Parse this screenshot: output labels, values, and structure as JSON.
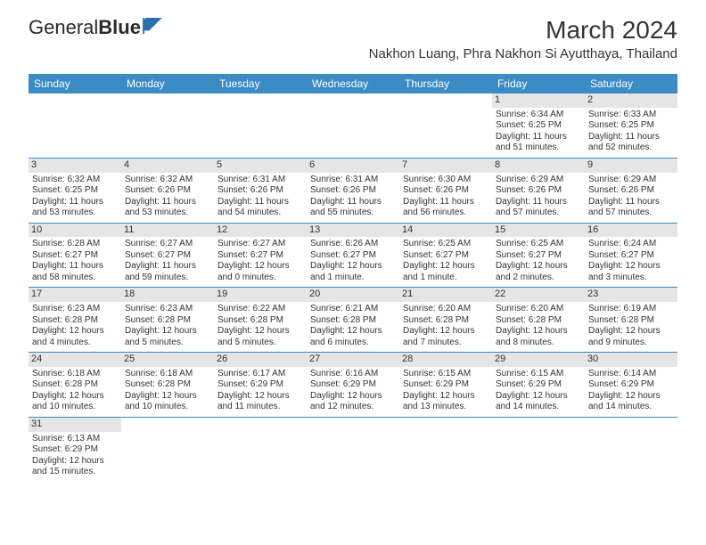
{
  "logo": {
    "text1": "General",
    "text2": "Blue"
  },
  "title": "March 2024",
  "location": "Nakhon Luang, Phra Nakhon Si Ayutthaya, Thailand",
  "colors": {
    "header_bg": "#3b8bc5",
    "header_fg": "#ffffff",
    "daynum_bg": "#e5e5e5",
    "border": "#3b8bc5",
    "logo_shape": "#2a6fb0"
  },
  "weekdays": [
    "Sunday",
    "Monday",
    "Tuesday",
    "Wednesday",
    "Thursday",
    "Friday",
    "Saturday"
  ],
  "weeks": [
    [
      null,
      null,
      null,
      null,
      null,
      {
        "d": "1",
        "sr": "Sunrise: 6:34 AM",
        "ss": "Sunset: 6:25 PM",
        "dl1": "Daylight: 11 hours",
        "dl2": "and 51 minutes."
      },
      {
        "d": "2",
        "sr": "Sunrise: 6:33 AM",
        "ss": "Sunset: 6:25 PM",
        "dl1": "Daylight: 11 hours",
        "dl2": "and 52 minutes."
      }
    ],
    [
      {
        "d": "3",
        "sr": "Sunrise: 6:32 AM",
        "ss": "Sunset: 6:25 PM",
        "dl1": "Daylight: 11 hours",
        "dl2": "and 53 minutes."
      },
      {
        "d": "4",
        "sr": "Sunrise: 6:32 AM",
        "ss": "Sunset: 6:26 PM",
        "dl1": "Daylight: 11 hours",
        "dl2": "and 53 minutes."
      },
      {
        "d": "5",
        "sr": "Sunrise: 6:31 AM",
        "ss": "Sunset: 6:26 PM",
        "dl1": "Daylight: 11 hours",
        "dl2": "and 54 minutes."
      },
      {
        "d": "6",
        "sr": "Sunrise: 6:31 AM",
        "ss": "Sunset: 6:26 PM",
        "dl1": "Daylight: 11 hours",
        "dl2": "and 55 minutes."
      },
      {
        "d": "7",
        "sr": "Sunrise: 6:30 AM",
        "ss": "Sunset: 6:26 PM",
        "dl1": "Daylight: 11 hours",
        "dl2": "and 56 minutes."
      },
      {
        "d": "8",
        "sr": "Sunrise: 6:29 AM",
        "ss": "Sunset: 6:26 PM",
        "dl1": "Daylight: 11 hours",
        "dl2": "and 57 minutes."
      },
      {
        "d": "9",
        "sr": "Sunrise: 6:29 AM",
        "ss": "Sunset: 6:26 PM",
        "dl1": "Daylight: 11 hours",
        "dl2": "and 57 minutes."
      }
    ],
    [
      {
        "d": "10",
        "sr": "Sunrise: 6:28 AM",
        "ss": "Sunset: 6:27 PM",
        "dl1": "Daylight: 11 hours",
        "dl2": "and 58 minutes."
      },
      {
        "d": "11",
        "sr": "Sunrise: 6:27 AM",
        "ss": "Sunset: 6:27 PM",
        "dl1": "Daylight: 11 hours",
        "dl2": "and 59 minutes."
      },
      {
        "d": "12",
        "sr": "Sunrise: 6:27 AM",
        "ss": "Sunset: 6:27 PM",
        "dl1": "Daylight: 12 hours",
        "dl2": "and 0 minutes."
      },
      {
        "d": "13",
        "sr": "Sunrise: 6:26 AM",
        "ss": "Sunset: 6:27 PM",
        "dl1": "Daylight: 12 hours",
        "dl2": "and 1 minute."
      },
      {
        "d": "14",
        "sr": "Sunrise: 6:25 AM",
        "ss": "Sunset: 6:27 PM",
        "dl1": "Daylight: 12 hours",
        "dl2": "and 1 minute."
      },
      {
        "d": "15",
        "sr": "Sunrise: 6:25 AM",
        "ss": "Sunset: 6:27 PM",
        "dl1": "Daylight: 12 hours",
        "dl2": "and 2 minutes."
      },
      {
        "d": "16",
        "sr": "Sunrise: 6:24 AM",
        "ss": "Sunset: 6:27 PM",
        "dl1": "Daylight: 12 hours",
        "dl2": "and 3 minutes."
      }
    ],
    [
      {
        "d": "17",
        "sr": "Sunrise: 6:23 AM",
        "ss": "Sunset: 6:28 PM",
        "dl1": "Daylight: 12 hours",
        "dl2": "and 4 minutes."
      },
      {
        "d": "18",
        "sr": "Sunrise: 6:23 AM",
        "ss": "Sunset: 6:28 PM",
        "dl1": "Daylight: 12 hours",
        "dl2": "and 5 minutes."
      },
      {
        "d": "19",
        "sr": "Sunrise: 6:22 AM",
        "ss": "Sunset: 6:28 PM",
        "dl1": "Daylight: 12 hours",
        "dl2": "and 5 minutes."
      },
      {
        "d": "20",
        "sr": "Sunrise: 6:21 AM",
        "ss": "Sunset: 6:28 PM",
        "dl1": "Daylight: 12 hours",
        "dl2": "and 6 minutes."
      },
      {
        "d": "21",
        "sr": "Sunrise: 6:20 AM",
        "ss": "Sunset: 6:28 PM",
        "dl1": "Daylight: 12 hours",
        "dl2": "and 7 minutes."
      },
      {
        "d": "22",
        "sr": "Sunrise: 6:20 AM",
        "ss": "Sunset: 6:28 PM",
        "dl1": "Daylight: 12 hours",
        "dl2": "and 8 minutes."
      },
      {
        "d": "23",
        "sr": "Sunrise: 6:19 AM",
        "ss": "Sunset: 6:28 PM",
        "dl1": "Daylight: 12 hours",
        "dl2": "and 9 minutes."
      }
    ],
    [
      {
        "d": "24",
        "sr": "Sunrise: 6:18 AM",
        "ss": "Sunset: 6:28 PM",
        "dl1": "Daylight: 12 hours",
        "dl2": "and 10 minutes."
      },
      {
        "d": "25",
        "sr": "Sunrise: 6:18 AM",
        "ss": "Sunset: 6:28 PM",
        "dl1": "Daylight: 12 hours",
        "dl2": "and 10 minutes."
      },
      {
        "d": "26",
        "sr": "Sunrise: 6:17 AM",
        "ss": "Sunset: 6:29 PM",
        "dl1": "Daylight: 12 hours",
        "dl2": "and 11 minutes."
      },
      {
        "d": "27",
        "sr": "Sunrise: 6:16 AM",
        "ss": "Sunset: 6:29 PM",
        "dl1": "Daylight: 12 hours",
        "dl2": "and 12 minutes."
      },
      {
        "d": "28",
        "sr": "Sunrise: 6:15 AM",
        "ss": "Sunset: 6:29 PM",
        "dl1": "Daylight: 12 hours",
        "dl2": "and 13 minutes."
      },
      {
        "d": "29",
        "sr": "Sunrise: 6:15 AM",
        "ss": "Sunset: 6:29 PM",
        "dl1": "Daylight: 12 hours",
        "dl2": "and 14 minutes."
      },
      {
        "d": "30",
        "sr": "Sunrise: 6:14 AM",
        "ss": "Sunset: 6:29 PM",
        "dl1": "Daylight: 12 hours",
        "dl2": "and 14 minutes."
      }
    ],
    [
      {
        "d": "31",
        "sr": "Sunrise: 6:13 AM",
        "ss": "Sunset: 6:29 PM",
        "dl1": "Daylight: 12 hours",
        "dl2": "and 15 minutes."
      },
      null,
      null,
      null,
      null,
      null,
      null
    ]
  ]
}
